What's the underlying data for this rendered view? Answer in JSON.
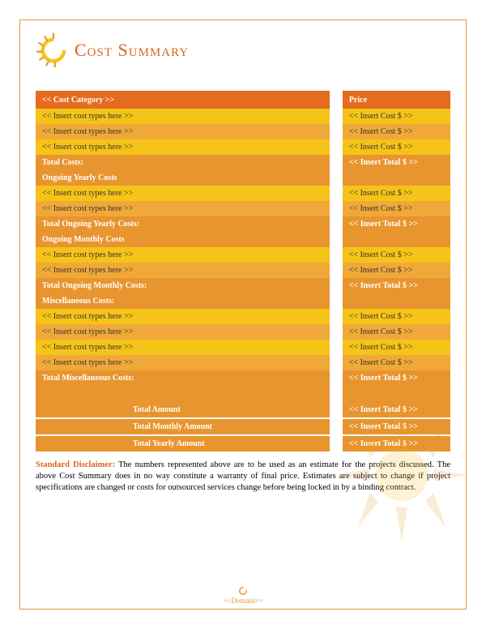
{
  "title": "Cost Summary",
  "title_color": "#d9641f",
  "border_color": "#e8952f",
  "colors": {
    "header_bg": "#e56b1f",
    "section_bg": "#e8952f",
    "row_odd": "#f6c318",
    "row_even": "#f0a939",
    "summary_bg": "#e8952f",
    "white": "#ffffff",
    "text_dark": "#333333",
    "disclaimer_lead": "#d9641f"
  },
  "headers": {
    "category": "<< Cost Category >>",
    "price": "Price"
  },
  "sections": [
    {
      "rows": [
        {
          "cat": "<< Insert cost types here >>",
          "price": "<< Insert Cost $ >>"
        },
        {
          "cat": "<< Insert cost types here >>",
          "price": "<< Insert Cost $ >>"
        },
        {
          "cat": "<< Insert cost types here >>",
          "price": "<< Insert Cost $ >>"
        }
      ],
      "total_label": "Total Costs:",
      "total_value": "<< Insert Total $ >>",
      "next_section_label": "Ongoing Yearly Costs"
    },
    {
      "rows": [
        {
          "cat": "<< Insert cost types here >>",
          "price": "<< Insert Cost $ >>"
        },
        {
          "cat": "<< Insert cost types here >>",
          "price": "<< Insert Cost $ >>"
        }
      ],
      "total_label": "Total Ongoing Yearly Costs:",
      "total_value": "<< Insert Total $ >>",
      "next_section_label": "Ongoing Monthly Costs"
    },
    {
      "rows": [
        {
          "cat": "<< Insert cost types here >>",
          "price": "<< Insert Cost $ >>"
        },
        {
          "cat": "<< Insert cost types here >>",
          "price": "<< Insert Cost $ >>"
        }
      ],
      "total_label": "Total Ongoing Monthly Costs:",
      "total_value": "<< Insert Total $ >>",
      "next_section_label": "Miscellaneous Costs:"
    },
    {
      "rows": [
        {
          "cat": "<< Insert cost types here >>",
          "price": "<< Insert Cost $ >>"
        },
        {
          "cat": "<< Insert cost types here >>",
          "price": "<< Insert Cost $ >>"
        },
        {
          "cat": "<< Insert cost types here >>",
          "price": "<< Insert Cost $ >>"
        },
        {
          "cat": "<< Insert cost types here >>",
          "price": "<< Insert Cost $ >>"
        }
      ],
      "total_label": "Total Miscellaneous Costs:",
      "total_value": "<< Insert Total $ >>"
    }
  ],
  "summary": [
    {
      "label": "Total Amount",
      "value": "<< Insert Total $ >>"
    },
    {
      "label": "Total Monthly Amount",
      "value": "<< Insert Total $ >>"
    },
    {
      "label": "Total Yearly Amount",
      "value": "<< Insert Total $ >>"
    }
  ],
  "disclaimer": {
    "lead": "Standard Disclaimer:",
    "body": " The numbers represented above are to be used as an estimate for the projects discussed. The above Cost Summary does in no way constitute a warranty of final price.  Estimates are subject to change if project specifications are changed or costs for outsourced services change before being locked in by a binding contract."
  },
  "footer": "<<Domain>>"
}
